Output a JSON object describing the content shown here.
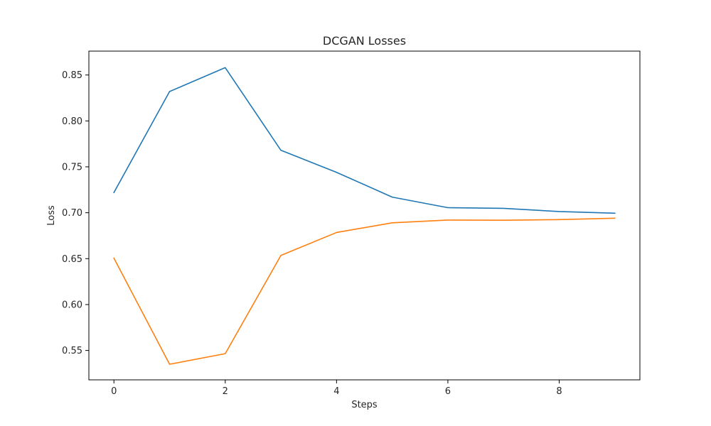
{
  "chart_data": {
    "type": "line",
    "title": "DCGAN Losses",
    "xlabel": "Steps",
    "ylabel": "Loss",
    "xlim": [
      -0.45,
      9.45
    ],
    "ylim": [
      0.518,
      0.876
    ],
    "xticks": [
      0,
      2,
      4,
      6,
      8
    ],
    "xtick_labels": [
      "0",
      "2",
      "4",
      "6",
      "8"
    ],
    "yticks": [
      0.55,
      0.6,
      0.65,
      0.7,
      0.75,
      0.8,
      0.85
    ],
    "ytick_labels": [
      "0.55",
      "0.60",
      "0.65",
      "0.70",
      "0.75",
      "0.80",
      "0.85"
    ],
    "grid": false,
    "x": [
      0,
      1,
      2,
      3,
      4,
      5,
      6,
      7,
      8,
      9
    ],
    "series": [
      {
        "color": "#1f77b4",
        "values": [
          0.722,
          0.832,
          0.858,
          0.768,
          0.744,
          0.717,
          0.7055,
          0.7048,
          0.7013,
          0.6995
        ]
      },
      {
        "color": "#ff7f0e",
        "values": [
          0.6505,
          0.535,
          0.5465,
          0.6535,
          0.6785,
          0.689,
          0.692,
          0.6918,
          0.6925,
          0.694
        ]
      }
    ]
  }
}
